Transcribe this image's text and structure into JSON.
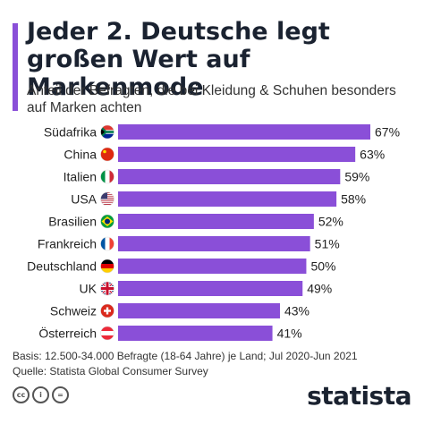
{
  "header": {
    "title": "Jeder 2. Deutsche legt großen Wert auf Markenmode",
    "subtitle": "Anteil der Befragten, die bei Kleidung & Schuhen besonders auf Marken achten",
    "accent_color": "#8a4fd8"
  },
  "chart_data": {
    "type": "bar",
    "orientation": "horizontal",
    "categories": [
      "Südafrika",
      "China",
      "Italien",
      "USA",
      "Brasilien",
      "Frankreich",
      "Deutschland",
      "UK",
      "Schweiz",
      "Österreich"
    ],
    "values": [
      67,
      63,
      59,
      58,
      52,
      51,
      50,
      49,
      43,
      41
    ],
    "value_labels": [
      "67%",
      "63%",
      "59%",
      "58%",
      "52%",
      "51%",
      "50%",
      "49%",
      "43%",
      "41%"
    ],
    "unit": "%",
    "flags": [
      "flag-south-africa-icon",
      "flag-china-icon",
      "flag-italy-icon",
      "flag-usa-icon",
      "flag-brazil-icon",
      "flag-france-icon",
      "flag-germany-icon",
      "flag-uk-icon",
      "flag-switzerland-icon",
      "flag-austria-icon"
    ],
    "bar_color": "#8a4fd8",
    "xlim": [
      0,
      67
    ],
    "grid": false,
    "legend": "none"
  },
  "footer": {
    "basis": "Basis: 12.500-34.000 Befragte (18-64 Jahre) je Land; Jul 2020-Jun 2021",
    "source": "Quelle: Statista Global Consumer Survey",
    "license_icons": [
      "cc-icon",
      "by-icon",
      "nd-icon"
    ],
    "cc_labels": [
      "cc",
      "i",
      "="
    ]
  },
  "brand": {
    "logo_text": "statista"
  }
}
